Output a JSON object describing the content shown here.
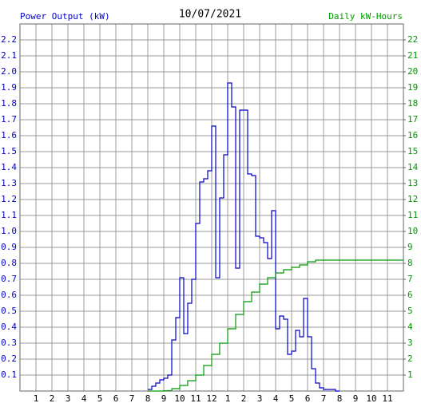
{
  "chart_data": {
    "type": "step-line",
    "title": "10/07/2021",
    "y_label": "Power Output (kW)",
    "y2_label": "Daily kW-Hours",
    "xlim": [
      0,
      24
    ],
    "xticks": [
      1,
      2,
      3,
      4,
      5,
      6,
      7,
      8,
      9,
      10,
      11,
      12,
      {
        "value": 13,
        "label": "1"
      },
      {
        "value": 14,
        "label": "2"
      },
      {
        "value": 15,
        "label": "3"
      },
      {
        "value": 16,
        "label": "4"
      },
      {
        "value": 17,
        "label": "5"
      },
      {
        "value": 18,
        "label": "6"
      },
      {
        "value": 19,
        "label": "7"
      },
      {
        "value": 20,
        "label": "8"
      },
      {
        "value": 21,
        "label": "9"
      },
      {
        "value": 22,
        "label": "10"
      },
      {
        "value": 23,
        "label": "11"
      }
    ],
    "ylim": [
      0,
      2.3
    ],
    "yticks": [
      0.1,
      0.2,
      0.3,
      0.4,
      0.5,
      0.6,
      0.7,
      0.8,
      0.9,
      {
        "value": 1,
        "label": "1.0"
      },
      1.1,
      1.2,
      1.3,
      1.4,
      1.5,
      1.6,
      1.7,
      1.8,
      1.9,
      {
        "value": 2,
        "label": "2.0"
      },
      2.1,
      2.2
    ],
    "y2lim": [
      0,
      23
    ],
    "y2ticks": [
      1,
      2,
      3,
      4,
      5,
      6,
      7,
      8,
      9,
      10,
      11,
      12,
      13,
      14,
      15,
      16,
      17,
      18,
      19,
      20,
      21,
      22
    ],
    "grid": true,
    "series": [
      {
        "name": "Power Output (kW)",
        "color": "#0000cc",
        "x": [
          8,
          8.25,
          8.5,
          8.75,
          9,
          9.25,
          9.5,
          9.75,
          10,
          10.25,
          10.5,
          10.75,
          11,
          11.25,
          11.5,
          11.75,
          12,
          12.25,
          12.5,
          12.75,
          13,
          13.25,
          13.5,
          13.75,
          14,
          14.25,
          14.5,
          14.75,
          15,
          15.25,
          15.5,
          15.75,
          16,
          16.25,
          16.5,
          16.75,
          17,
          17.25,
          17.5,
          17.75,
          18,
          18.25,
          18.5,
          18.75,
          19,
          19.25,
          19.5,
          19.75,
          20
        ],
        "values": [
          0.01,
          0.03,
          0.05,
          0.07,
          0.08,
          0.1,
          0.32,
          0.46,
          0.71,
          0.36,
          0.55,
          0.7,
          1.05,
          1.31,
          1.33,
          1.38,
          1.66,
          0.71,
          1.21,
          1.48,
          1.93,
          1.78,
          0.77,
          1.76,
          1.76,
          1.36,
          1.35,
          0.97,
          0.96,
          0.93,
          0.83,
          1.13,
          0.39,
          0.47,
          0.45,
          0.23,
          0.25,
          0.38,
          0.34,
          0.58,
          0.34,
          0.14,
          0.05,
          0.02,
          0.01,
          0.01,
          0.01,
          0,
          0
        ]
      },
      {
        "name": "Daily kW-Hours",
        "color": "#009900",
        "axis": "y2",
        "x": [
          8,
          9,
          9.5,
          10,
          10.5,
          11,
          11.5,
          12,
          12.5,
          13,
          13.5,
          14,
          14.5,
          15,
          15.5,
          16,
          16.5,
          17,
          17.5,
          18,
          18.5,
          19,
          24
        ],
        "values": [
          0,
          0.02,
          0.15,
          0.35,
          0.65,
          1.0,
          1.6,
          2.3,
          3.0,
          3.9,
          4.8,
          5.6,
          6.2,
          6.7,
          7.1,
          7.4,
          7.6,
          7.75,
          7.9,
          8.1,
          8.2,
          8.2,
          8.2
        ]
      }
    ]
  }
}
